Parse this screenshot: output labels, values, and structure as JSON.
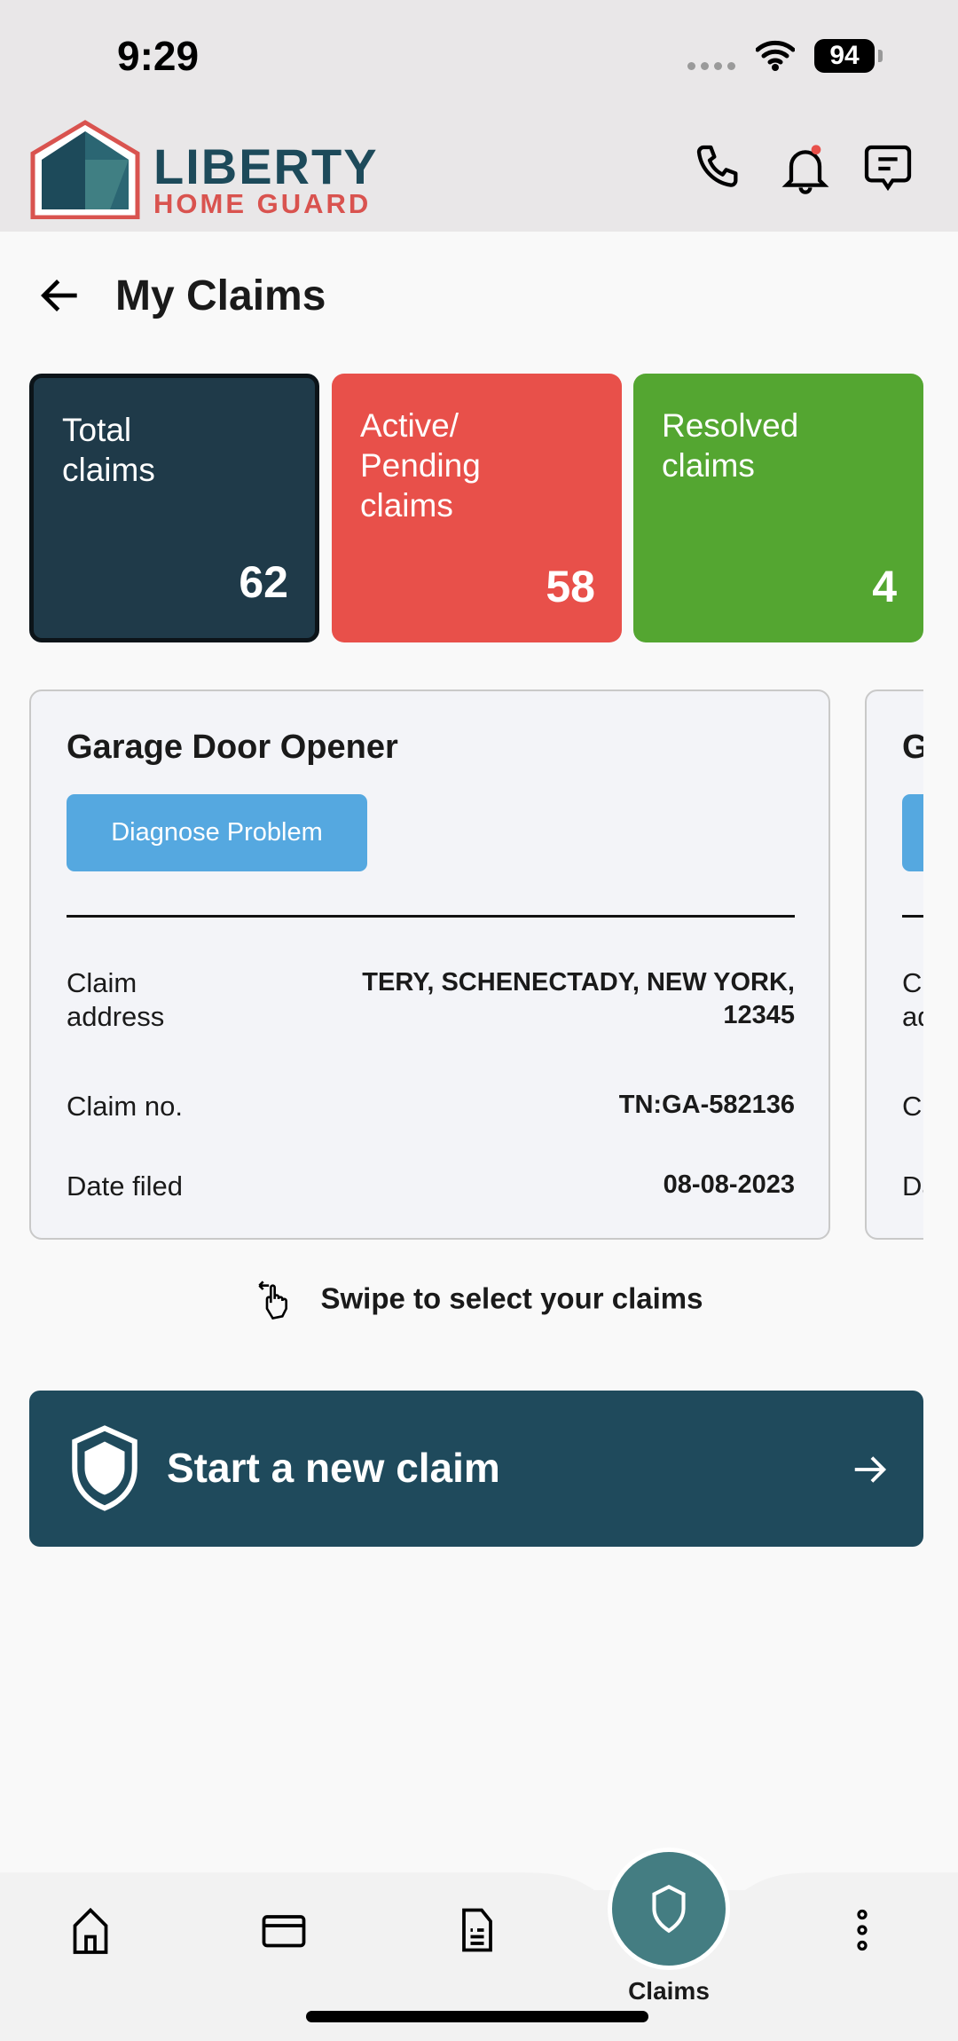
{
  "status_bar": {
    "time": "9:29",
    "battery": "94"
  },
  "header": {
    "logo_line1": "LIBERTY",
    "logo_line2": "HOME GUARD",
    "icons": [
      "phone-icon",
      "bell-icon",
      "chat-icon"
    ],
    "notification_dot_color": "#e8504a"
  },
  "page": {
    "title": "My Claims"
  },
  "stats": [
    {
      "label": "Total claims",
      "value": "62",
      "color": "#1f3a49"
    },
    {
      "label": "Active/ Pending claims",
      "value": "58",
      "color": "#e8504a"
    },
    {
      "label": "Resolved claims",
      "value": "4",
      "color": "#54a631"
    }
  ],
  "claims": [
    {
      "title": "Garage Door Opener",
      "action": "Diagnose Problem",
      "address_label": "Claim address",
      "address": "TERY, SCHENECTADY, NEW YORK, 12345",
      "number_label": "Claim no.",
      "number": "TN:GA-582136",
      "date_label": "Date filed",
      "date": "08-08-2023"
    },
    {
      "title": "G",
      "address_label": "Claim address",
      "number_label": "Claim no.",
      "date_label": "Date filed"
    }
  ],
  "swipe_hint": "Swipe to select your claims",
  "start_claim": "Start a new claim",
  "nav": {
    "items": [
      "home-icon",
      "card-icon",
      "document-icon",
      "shield-icon",
      "more-icon"
    ],
    "active_label": "Claims"
  }
}
